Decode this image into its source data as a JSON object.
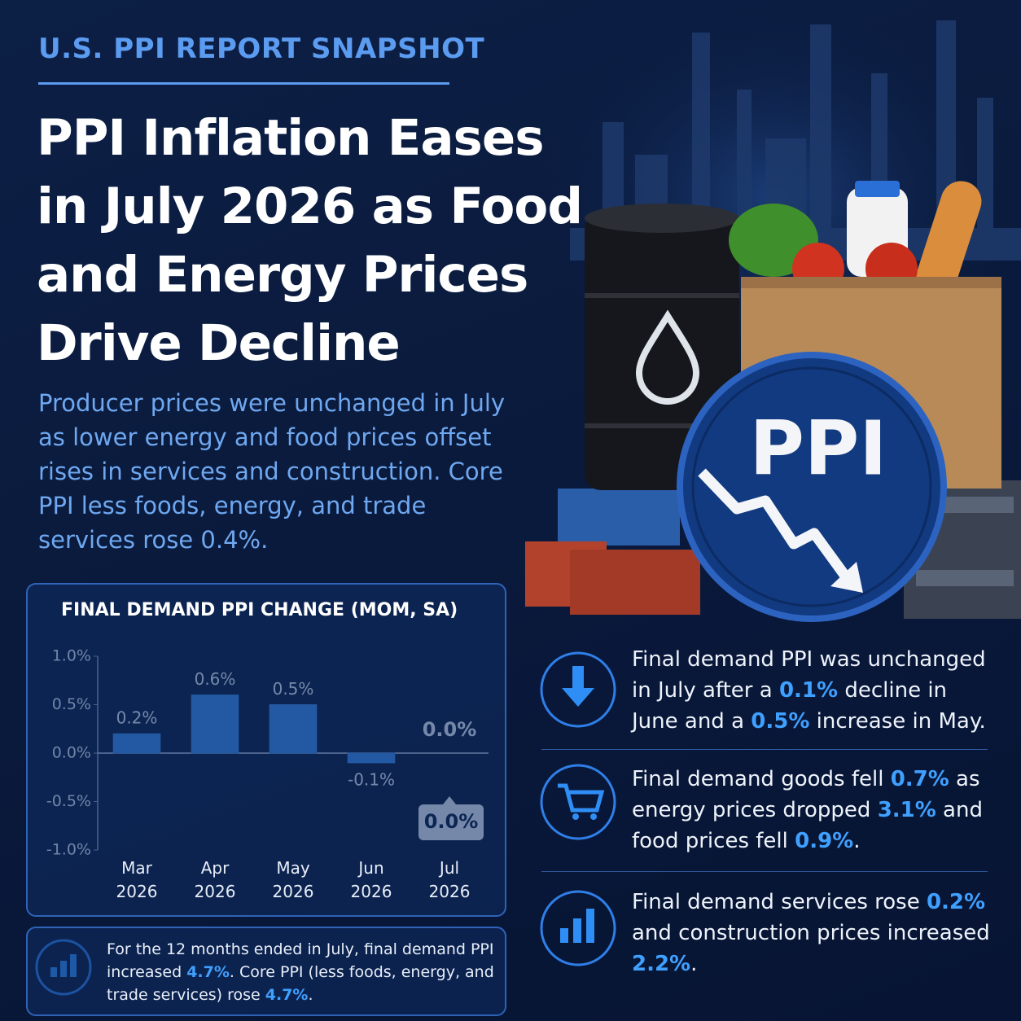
{
  "header": {
    "kicker": "U.S. PPI REPORT SNAPSHOT",
    "title": "PPI Inflation Eases in July 2026 as Food and Energy Prices Drive Decline",
    "subtitle": "Producer prices were unchanged in July as lower energy and food prices offset rises in services and construction. Core PPI less foods, energy, and trade services rose 0.4%."
  },
  "illustration": {
    "badge": "PPI"
  },
  "chart_data": {
    "type": "bar",
    "title": "FINAL DEMAND PPI CHANGE (MOM, SA)",
    "categories": [
      "Mar 2026",
      "Apr 2026",
      "May 2026",
      "Jun 2026",
      "Jul 2026"
    ],
    "values": [
      0.2,
      0.6,
      0.5,
      -0.1,
      0.0
    ],
    "value_labels": [
      "0.2%",
      "0.6%",
      "0.5%",
      "-0.1%",
      "0.0%"
    ],
    "annotation": "0.0%",
    "color": "#3d8ef0",
    "ylim": [
      -1.0,
      1.0
    ],
    "yticks": [
      {
        "value": 1.0,
        "label": "1.0%"
      },
      {
        "value": 0.5,
        "label": "0.5%"
      },
      {
        "value": 0.0,
        "label": "0.0%"
      },
      {
        "value": -0.5,
        "label": "-0.5%"
      },
      {
        "value": -1.0,
        "label": "-1.0%"
      }
    ],
    "grid": false
  },
  "footnote": {
    "parts": [
      "For the 12 months ended in July, final demand PPI increased ",
      "4.7%",
      ". Core PPI (less foods, energy, and trade services) rose ",
      "4.7%",
      "."
    ]
  },
  "highlights": [
    {
      "parts": [
        "Final demand PPI was unchanged in July after a ",
        "0.1%",
        " decline in June and a ",
        "0.5%",
        " increase in May."
      ]
    },
    {
      "parts": [
        "Final demand goods fell ",
        "0.7%",
        " as energy prices dropped ",
        "3.1%",
        " and food prices fell ",
        "0.9%",
        "."
      ]
    },
    {
      "parts": [
        "Final demand services rose ",
        "0.2%",
        " and construction prices increased ",
        "2.2%",
        "."
      ]
    }
  ]
}
